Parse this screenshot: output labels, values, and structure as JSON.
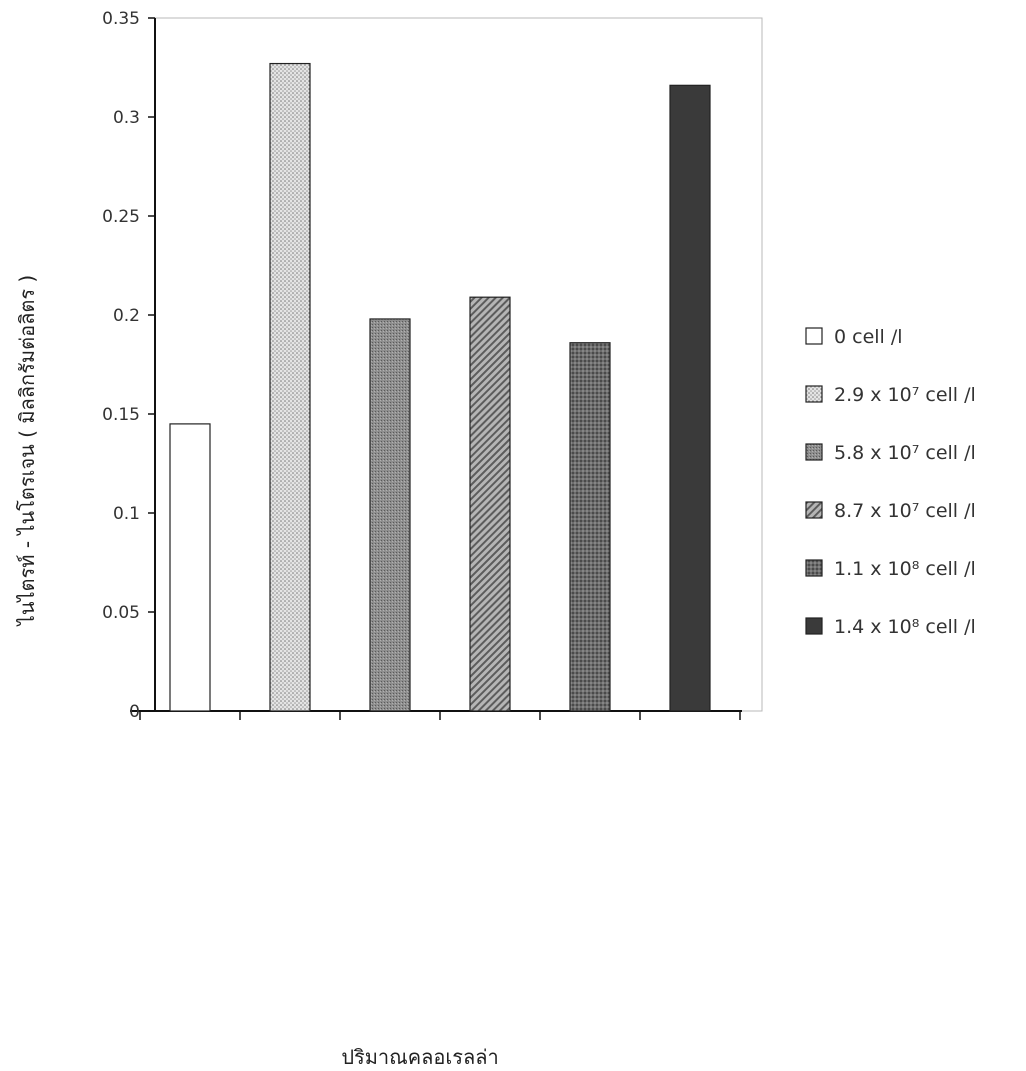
{
  "chart_data": {
    "type": "bar",
    "xlabel": "ปริมาณคลอเรลล่า",
    "ylabel": "ไนไตรท์ - ไนโตรเจน ( มิลลิกรัมต่อลิตร )",
    "ylim": [
      0,
      0.35
    ],
    "yticks": [
      "0",
      "0.05",
      "0.1",
      "0.15",
      "0.2",
      "0.25",
      "0.3",
      "0.35"
    ],
    "categories": [
      "0 cell /l",
      "2.9 x 10⁷ cell /l",
      "5.8 x 10⁷ cell /l",
      "8.7 x 10⁷ cell /l",
      "1.1 x 10⁸ cell /l",
      "1.4 x 10⁸ cell /l"
    ],
    "values": [
      0.145,
      0.327,
      0.198,
      0.209,
      0.186,
      0.316
    ],
    "legend_position": "right",
    "grid": false,
    "colors": [
      "#ffffff",
      "#cfcfcf",
      "#8c8c8c",
      "#9a9a9a",
      "#6e6e6e",
      "#3c3c3c"
    ],
    "patterns": [
      "none",
      "dots",
      "fine",
      "diagonal",
      "dense",
      "solid"
    ],
    "legend": {
      "items": [
        {
          "label": "0 cell /l"
        },
        {
          "label": "2.9 x 10⁷ cell /l"
        },
        {
          "label": "5.8 x 10⁷ cell /l"
        },
        {
          "label": "8.7 x 10⁷ cell /l"
        },
        {
          "label": "1.1 x 10⁸ cell /l"
        },
        {
          "label": "1.4 x 10⁸ cell /l"
        }
      ]
    }
  }
}
